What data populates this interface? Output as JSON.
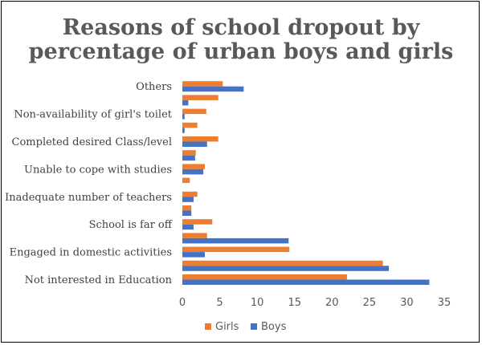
{
  "chart_data": {
    "type": "bar",
    "orientation": "horizontal",
    "title": "Reasons of school dropout by percentage of urban boys and girls",
    "title_lines": [
      "Reasons of school dropout by",
      "percentage of urban boys and girls"
    ],
    "categories": [
      "Not interested in Education",
      "",
      "Engaged in domestic activities",
      "",
      "School is far off",
      "",
      "Inadequate number of teachers",
      "",
      "Unable to cope with studies",
      "",
      "Completed desired Class/level",
      "",
      "Non-availability of girl's toilet",
      "",
      "Others"
    ],
    "series": [
      {
        "name": "Girls",
        "color": "#ED7D31",
        "values": [
          22.0,
          26.8,
          14.3,
          3.3,
          4.0,
          1.2,
          2.0,
          1.0,
          3.0,
          1.8,
          4.8,
          2.0,
          3.2,
          4.8,
          5.4
        ]
      },
      {
        "name": "Boys",
        "color": "#4472C4",
        "values": [
          33.0,
          27.6,
          3.0,
          14.2,
          1.5,
          1.2,
          1.5,
          0.0,
          2.8,
          1.7,
          3.3,
          0.3,
          0.3,
          0.8,
          8.2
        ]
      }
    ],
    "xlim": [
      0,
      35
    ],
    "xticks": [
      "0",
      "5",
      "10",
      "15",
      "20",
      "25",
      "30",
      "35"
    ],
    "grid": false,
    "legend_position": "bottom"
  }
}
